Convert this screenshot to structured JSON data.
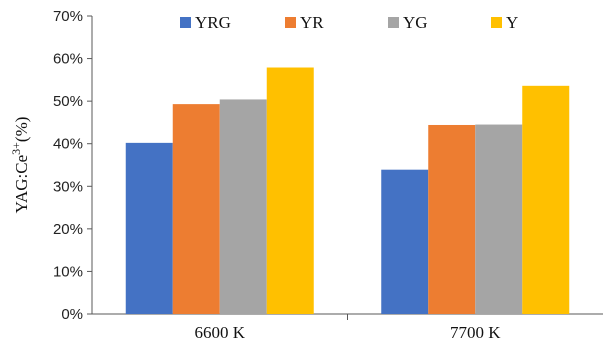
{
  "chart_data": {
    "type": "bar",
    "categories": [
      "6600 K",
      "7700 K"
    ],
    "series": [
      {
        "name": "YRG",
        "color": "#4472C4",
        "values": [
          40.2,
          33.9
        ]
      },
      {
        "name": "YR",
        "color": "#ED7D31",
        "values": [
          49.3,
          44.4
        ]
      },
      {
        "name": "YG",
        "color": "#A5A5A5",
        "values": [
          50.4,
          44.5
        ]
      },
      {
        "name": "Y",
        "color": "#FFC000",
        "values": [
          57.9,
          53.6
        ]
      }
    ],
    "title": "",
    "xlabel": "",
    "ylabel_main": "YAG:Ce",
    "ylabel_sup": "3+",
    "ylabel_unit": "(%)",
    "ylim": [
      0,
      70
    ],
    "yticks": [
      0,
      10,
      20,
      30,
      40,
      50,
      60,
      70
    ],
    "ytick_labels": [
      "0%",
      "10%",
      "20%",
      "30%",
      "40%",
      "50%",
      "60%",
      "70%"
    ],
    "grid": false,
    "legend_position": "top"
  }
}
